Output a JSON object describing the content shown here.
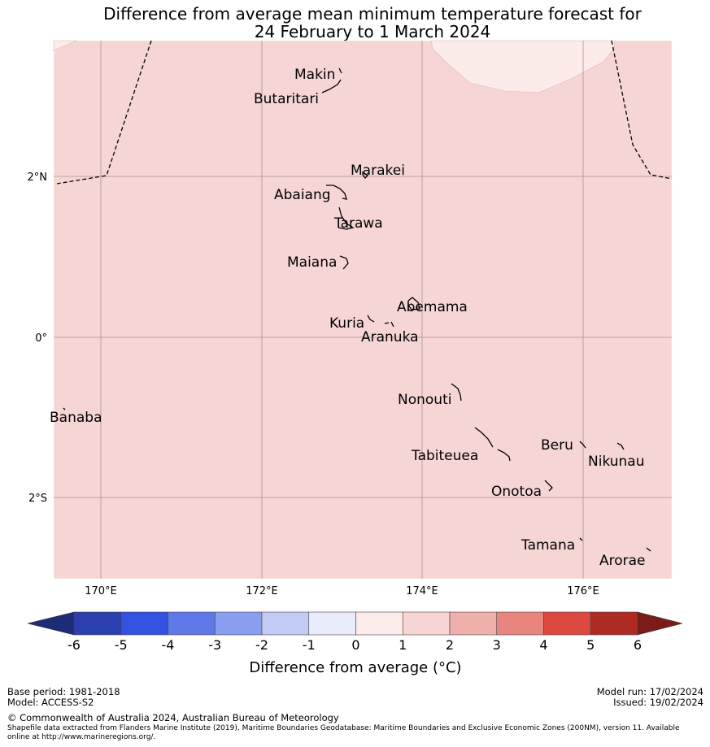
{
  "title": {
    "line1": "Difference from average mean minimum temperature forecast for",
    "line2": "24 February to 1 March 2024"
  },
  "map": {
    "background_anomaly_bin": "1 to 2",
    "fill_color": "#f5d6d4",
    "patch_color": "#fbebe9",
    "lat_labels": [
      "2°N",
      "0°",
      "2°S"
    ],
    "lon_labels": [
      "170°E",
      "172°E",
      "174°E",
      "176°E"
    ],
    "places": [
      {
        "name": "Makin",
        "id": "makin"
      },
      {
        "name": "Butaritari",
        "id": "butaritari"
      },
      {
        "name": "Marakei",
        "id": "marakei"
      },
      {
        "name": "Abaiang",
        "id": "abaiang"
      },
      {
        "name": "Tarawa",
        "id": "tarawa"
      },
      {
        "name": "Maiana",
        "id": "maiana"
      },
      {
        "name": "Abemama",
        "id": "abemama"
      },
      {
        "name": "Kuria",
        "id": "kuria"
      },
      {
        "name": "Aranuka",
        "id": "aranuka"
      },
      {
        "name": "Nonouti",
        "id": "nonouti"
      },
      {
        "name": "Banaba",
        "id": "banaba"
      },
      {
        "name": "Beru",
        "id": "beru"
      },
      {
        "name": "Tabiteuea",
        "id": "tabiteuea"
      },
      {
        "name": "Nikunau",
        "id": "nikunau"
      },
      {
        "name": "Onotoa",
        "id": "onotoa"
      },
      {
        "name": "Tamana",
        "id": "tamana"
      },
      {
        "name": "Arorae",
        "id": "arorae"
      }
    ]
  },
  "colorbar": {
    "ticks": [
      "-6",
      "-5",
      "-4",
      "-3",
      "-2",
      "-1",
      "0",
      "1",
      "2",
      "3",
      "4",
      "5",
      "6"
    ],
    "colors": [
      "#2b3fb0",
      "#3352e2",
      "#5e78e8",
      "#8a9ef0",
      "#c2cbf6",
      "#e8ecfb",
      "#fdeceb",
      "#f5d6d4",
      "#efafad",
      "#e8857f",
      "#dc4840",
      "#ae2b24"
    ],
    "under_color": "#1e2c78",
    "over_color": "#7a1c17",
    "label": "Difference from average (°C)"
  },
  "footer": {
    "base_period": "Base period: 1981-2018",
    "model": "Model: ACCESS-S2",
    "model_run": "Model run: 17/02/2024",
    "issued": "Issued: 19/02/2024",
    "copyright": "© Commonwealth of Australia 2024, Australian Bureau of Meteorology",
    "source": "Shapefile data extracted from Flanders Marine Institute (2019), Maritime Boundaries Geodatabase: Maritime Boundaries and Exclusive Economic Zones (200NM), version 11. Available online at http://www.marineregions.org/."
  }
}
